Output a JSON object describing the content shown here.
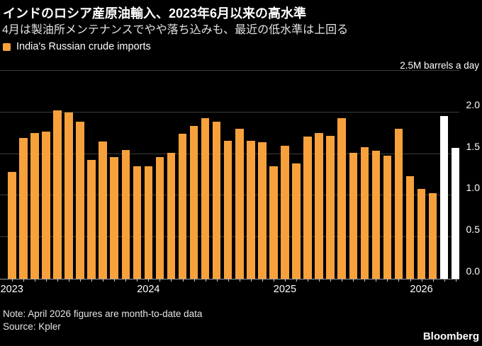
{
  "header": {
    "title": "インドのロシア産原油輸入、2023年6月以来の高水準",
    "subtitle": "4月は製油所メンテナンスでやや落ち込みも、最近の低水準は上回る"
  },
  "legend": {
    "label": "India's Russian crude imports",
    "marker_color": "#F7A13C"
  },
  "footer": {
    "note": "Note: April 2026 figures are month-to-date data",
    "source": "Source: Kpler",
    "brand": "Bloomberg"
  },
  "colors": {
    "background": "#000000",
    "bar_orange": "#F7A13C",
    "bar_highlight_white": "#FFFFFF",
    "gridline": "#3d3d3d",
    "text": "#FFFFFF"
  },
  "chart_data": {
    "type": "bar",
    "title": "India's Russian crude imports",
    "unit_label": "2.5M barrels a day",
    "ylabel": "M barrels a day",
    "ylim": [
      0,
      2.5
    ],
    "grid_on": true,
    "grid_values": [
      2.5,
      2.0,
      1.5,
      1.0,
      0.5,
      0.0
    ],
    "yticks": [
      {
        "label": "2.0",
        "value": 2.0
      },
      {
        "label": "1.5",
        "value": 1.5
      },
      {
        "label": "1.0",
        "value": 1.0
      },
      {
        "label": "0.5",
        "value": 0.5
      },
      {
        "label": "0.0",
        "value": 0.0
      }
    ],
    "x": [
      "2023-01",
      "2023-02",
      "2023-03",
      "2023-04",
      "2023-05",
      "2023-06",
      "2023-07",
      "2023-08",
      "2023-09",
      "2023-10",
      "2023-11",
      "2023-12",
      "2024-01",
      "2024-02",
      "2024-03",
      "2024-04",
      "2024-05",
      "2024-06",
      "2024-07",
      "2024-08",
      "2024-09",
      "2024-10",
      "2024-11",
      "2024-12",
      "2025-01",
      "2025-02",
      "2025-03",
      "2025-04",
      "2025-05",
      "2025-06",
      "2025-07",
      "2025-08",
      "2025-09",
      "2025-10",
      "2025-11",
      "2025-12",
      "2026-01",
      "2026-02",
      "2026-03",
      "2026-04"
    ],
    "values": [
      1.28,
      1.69,
      1.75,
      1.77,
      2.02,
      2.0,
      1.89,
      1.43,
      1.65,
      1.46,
      1.55,
      1.35,
      1.35,
      1.46,
      1.51,
      1.74,
      1.84,
      1.93,
      1.89,
      1.66,
      1.8,
      1.66,
      1.64,
      1.35,
      1.6,
      1.39,
      1.71,
      1.75,
      1.72,
      1.93,
      1.51,
      1.58,
      1.54,
      1.48,
      1.8,
      1.23,
      1.08,
      1.03,
      1.96,
      1.57
    ],
    "bar_color": "#F7A13C",
    "highlight_color": "#FFFFFF",
    "highlight_indices": [
      38,
      39
    ],
    "year_ticks": [
      {
        "label": "2023",
        "index": 0
      },
      {
        "label": "2024",
        "index": 12
      },
      {
        "label": "2025",
        "index": 24
      },
      {
        "label": "2026",
        "index": 36
      }
    ],
    "legend_position": "top-left"
  }
}
